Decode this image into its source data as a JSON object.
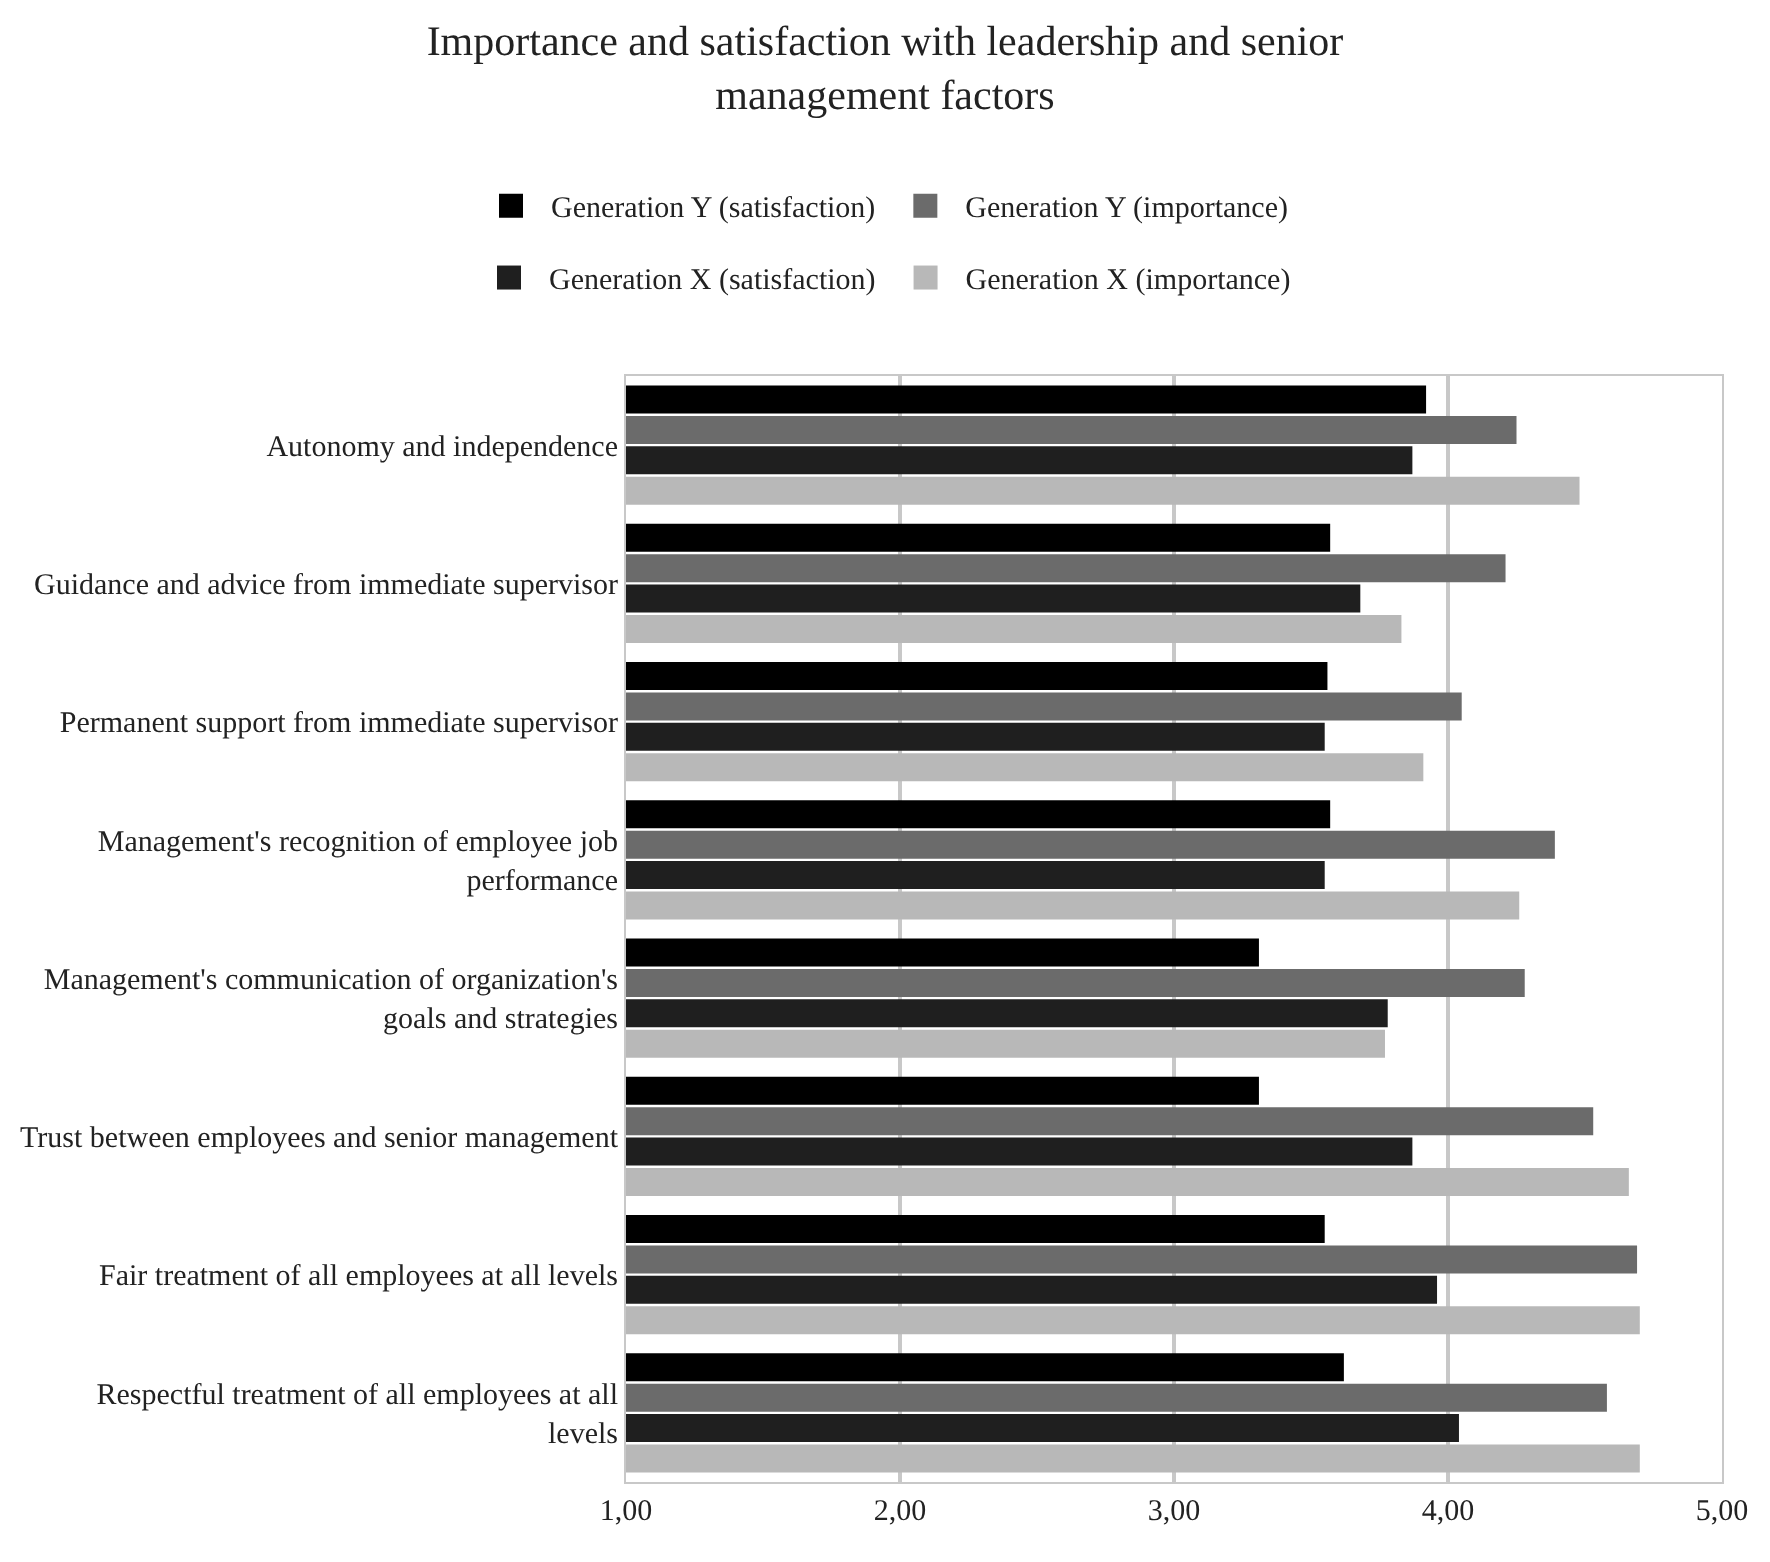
{
  "chart_data": {
    "type": "bar",
    "orientation": "horizontal",
    "title": "Importance and satisfaction with leadership and senior management factors",
    "categories": [
      "Autonomy and independence",
      "Guidance and advice from immediate supervisor",
      "Permanent support from immediate supervisor",
      "Management's recognition of employee job performance",
      "Management's communication of organization's goals and strategies",
      "Trust between employees and senior management",
      "Fair treatment of all employees at all levels",
      "Respectful treatment of all employees at all levels"
    ],
    "series": [
      {
        "name": "Generation Y (satisfaction)",
        "color": "#000000",
        "values": [
          3.92,
          3.57,
          3.56,
          3.57,
          3.31,
          3.31,
          3.55,
          3.62
        ]
      },
      {
        "name": "Generation Y (importance)",
        "color": "#6b6b6b",
        "values": [
          4.25,
          4.21,
          4.05,
          4.39,
          4.28,
          4.53,
          4.69,
          4.58
        ]
      },
      {
        "name": "Generation X (satisfaction)",
        "color": "#1f1f1f",
        "values": [
          3.87,
          3.68,
          3.55,
          3.55,
          3.78,
          3.87,
          3.96,
          4.04
        ]
      },
      {
        "name": "Generation X (importance)",
        "color": "#b8b8b8",
        "values": [
          4.48,
          3.83,
          3.91,
          4.26,
          3.77,
          4.66,
          4.7,
          4.7
        ]
      }
    ],
    "xlim": [
      1,
      5
    ],
    "xticks": [
      {
        "value": 1,
        "label": "1,00"
      },
      {
        "value": 2,
        "label": "2,00"
      },
      {
        "value": 3,
        "label": "3,00"
      },
      {
        "value": 4,
        "label": "4,00"
      },
      {
        "value": 5,
        "label": "5,00"
      }
    ],
    "grid": "x",
    "legend": "top"
  }
}
